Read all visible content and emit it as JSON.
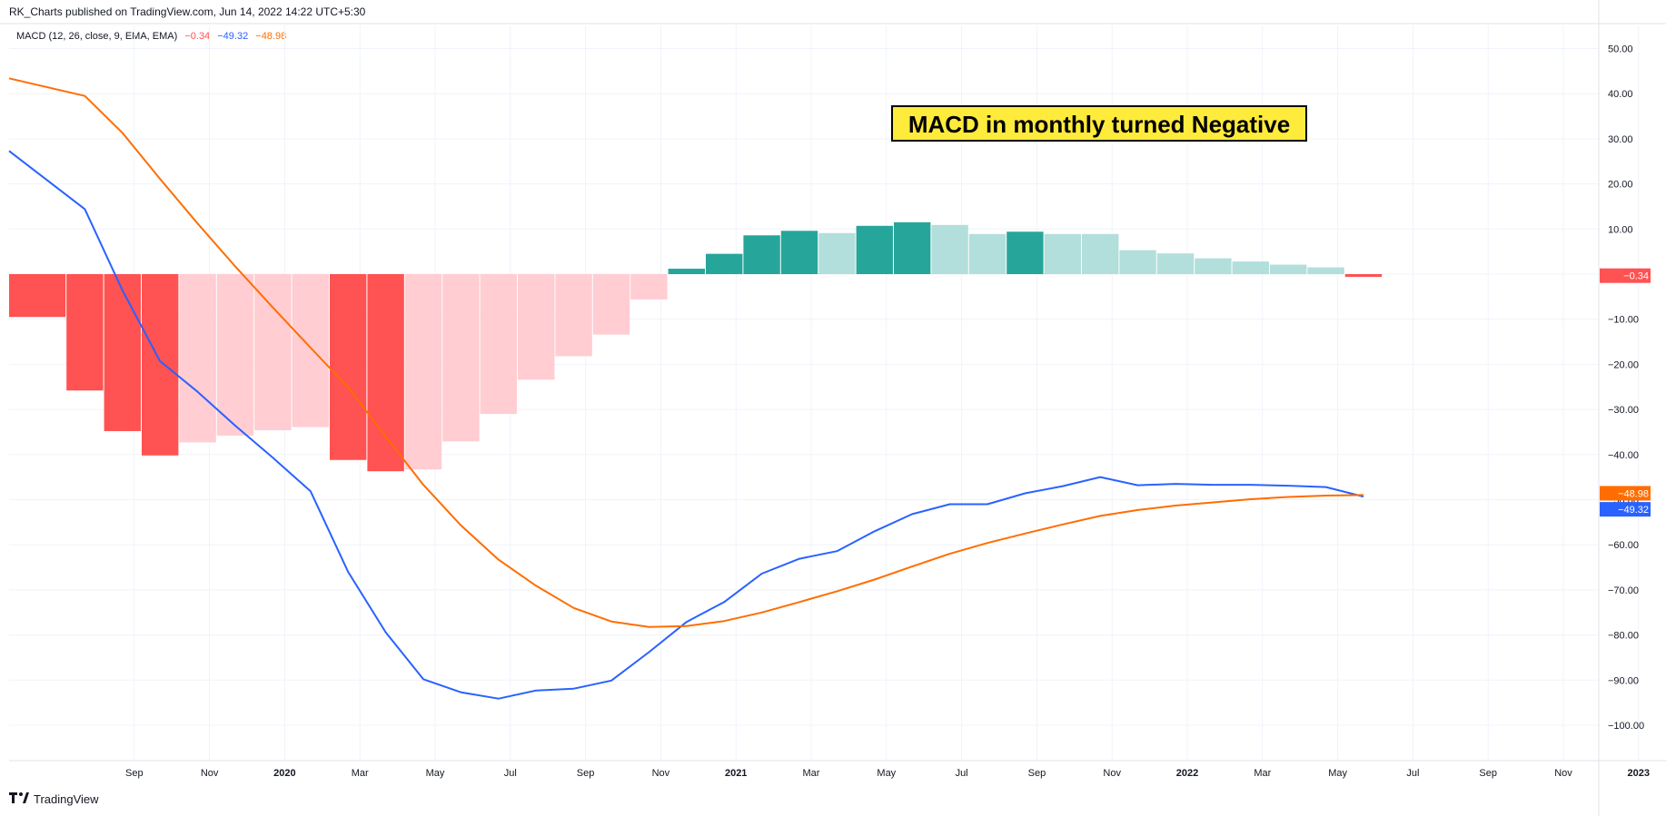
{
  "header": {
    "publisher": "RK_Charts published on TradingView.com, Jun 14, 2022 14:22 UTC+5:30"
  },
  "legend": {
    "indicator": "MACD (12, 26, close, 9, EMA, EMA)",
    "histogram_value": "−0.34",
    "macd_value": "−49.32",
    "signal_value": "−48.98"
  },
  "annotation": {
    "text": "MACD in monthly turned Negative"
  },
  "footer": {
    "brand": "TradingView",
    "logo": "tradingview-logo-icon"
  },
  "colors": {
    "macd_line": "#2962ff",
    "signal_line": "#ff6d00",
    "hist_pos_strong": "#26a69a",
    "hist_pos_weak": "#b2dfdb",
    "hist_neg_strong": "#ff5252",
    "hist_neg_weak": "#ffcdd2",
    "annotation_bg": "#ffeb3b"
  },
  "chart_data": {
    "type": "bar",
    "title": "",
    "y_ticks": [
      "50.00",
      "40.00",
      "30.00",
      "20.00",
      "10.00",
      "0.00",
      "−10.00",
      "−20.00",
      "−30.00",
      "−40.00",
      "−50.00",
      "−60.00",
      "−70.00",
      "−80.00",
      "−90.00",
      "−100.00"
    ],
    "ylim": [
      -107,
      52
    ],
    "x_ticks": [
      "Sep",
      "Nov",
      "2020",
      "Mar",
      "May",
      "Jul",
      "Sep",
      "Nov",
      "2021",
      "Mar",
      "May",
      "Jul",
      "Sep",
      "Nov",
      "2022",
      "Mar",
      "May",
      "Jul",
      "Sep",
      "Nov",
      "2023"
    ],
    "x_tick_months": [
      "2019-09",
      "2019-11",
      "2020-01",
      "2020-03",
      "2020-05",
      "2020-07",
      "2020-09",
      "2020-11",
      "2021-01",
      "2021-03",
      "2021-05",
      "2021-07",
      "2021-09",
      "2021-11",
      "2022-01",
      "2022-03",
      "2022-05",
      "2022-07",
      "2022-09",
      "2022-11",
      "2023-01"
    ],
    "x_tick_bold": [
      false,
      false,
      true,
      false,
      false,
      false,
      false,
      false,
      true,
      false,
      false,
      false,
      false,
      false,
      true,
      false,
      false,
      false,
      false,
      false,
      true
    ],
    "histogram": {
      "months": [
        "2019-07",
        "2019-08",
        "2019-09",
        "2019-10",
        "2019-11",
        "2019-12",
        "2020-01",
        "2020-02",
        "2020-03",
        "2020-04",
        "2020-05",
        "2020-06",
        "2020-07",
        "2020-08",
        "2020-09",
        "2020-10",
        "2020-11",
        "2020-12",
        "2021-01",
        "2021-02",
        "2021-03",
        "2021-04",
        "2021-05",
        "2021-06",
        "2021-07",
        "2021-08",
        "2021-09",
        "2021-10",
        "2021-11",
        "2021-12",
        "2022-01",
        "2022-02",
        "2022-03",
        "2022-04",
        "2022-05",
        "2022-06"
      ],
      "values": [
        -9.5,
        -25.8,
        -34.8,
        -40.2,
        -37.3,
        -35.8,
        -34.6,
        -33.9,
        -41.2,
        -43.7,
        -43.3,
        -37.1,
        -31.0,
        -23.4,
        -18.2,
        -13.4,
        -5.6,
        1.2,
        4.5,
        8.6,
        9.6,
        9.1,
        10.7,
        11.5,
        10.9,
        8.9,
        9.4,
        8.9,
        8.9,
        5.3,
        4.6,
        3.5,
        2.8,
        2.1,
        1.5,
        -0.34
      ],
      "colors": [
        "hist_neg_strong",
        "hist_neg_strong",
        "hist_neg_strong",
        "hist_neg_strong",
        "hist_neg_weak",
        "hist_neg_weak",
        "hist_neg_weak",
        "hist_neg_weak",
        "hist_neg_strong",
        "hist_neg_strong",
        "hist_neg_weak",
        "hist_neg_weak",
        "hist_neg_weak",
        "hist_neg_weak",
        "hist_neg_weak",
        "hist_neg_weak",
        "hist_neg_weak",
        "hist_pos_strong",
        "hist_pos_strong",
        "hist_pos_strong",
        "hist_pos_strong",
        "hist_pos_weak",
        "hist_pos_strong",
        "hist_pos_strong",
        "hist_pos_weak",
        "hist_pos_weak",
        "hist_pos_strong",
        "hist_pos_weak",
        "hist_pos_weak",
        "hist_pos_weak",
        "hist_pos_weak",
        "hist_pos_weak",
        "hist_pos_weak",
        "hist_pos_weak",
        "hist_pos_weak",
        "hist_neg_strong"
      ]
    },
    "series": [
      {
        "name": "MACD",
        "months": [
          "2019-07",
          "2019-08",
          "2019-09",
          "2019-10",
          "2019-11",
          "2019-12",
          "2020-01",
          "2020-02",
          "2020-03",
          "2020-04",
          "2020-05",
          "2020-06",
          "2020-07",
          "2020-08",
          "2020-09",
          "2020-10",
          "2020-11",
          "2020-12",
          "2021-01",
          "2021-02",
          "2021-03",
          "2021-04",
          "2021-05",
          "2021-06",
          "2021-07",
          "2021-08",
          "2021-09",
          "2021-10",
          "2021-11",
          "2021-12",
          "2022-01",
          "2022-02",
          "2022-03",
          "2022-04",
          "2022-05",
          "2022-06"
        ],
        "values": [
          27.3,
          14.4,
          -3.6,
          -19.3,
          -26.1,
          -33.6,
          -40.7,
          -48.1,
          -66.0,
          -79.4,
          -89.8,
          -92.7,
          -94.1,
          -92.3,
          -91.9,
          -90.1,
          -83.8,
          -77.1,
          -72.7,
          -66.4,
          -63.1,
          -61.4,
          -57.0,
          -53.2,
          -51.0,
          -51.0,
          -48.6,
          -47.0,
          -45.0,
          -46.8,
          -46.5,
          -46.7,
          -46.7,
          -46.9,
          -47.2,
          -49.32
        ]
      },
      {
        "name": "Signal",
        "months": [
          "2019-07",
          "2019-08",
          "2019-09",
          "2019-10",
          "2019-11",
          "2019-12",
          "2020-01",
          "2020-02",
          "2020-03",
          "2020-04",
          "2020-05",
          "2020-06",
          "2020-07",
          "2020-08",
          "2020-09",
          "2020-10",
          "2020-11",
          "2020-12",
          "2021-01",
          "2021-02",
          "2021-03",
          "2021-04",
          "2021-05",
          "2021-06",
          "2021-07",
          "2021-08",
          "2021-09",
          "2021-10",
          "2021-11",
          "2021-12",
          "2022-01",
          "2022-02",
          "2022-03",
          "2022-04",
          "2022-05",
          "2022-06"
        ],
        "values": [
          43.4,
          39.5,
          31.3,
          21.1,
          11.2,
          1.7,
          -7.4,
          -16.3,
          -25.1,
          -36.0,
          -46.7,
          -55.7,
          -63.3,
          -69.1,
          -74.0,
          -77.0,
          -78.2,
          -78.0,
          -76.9,
          -75.0,
          -72.7,
          -70.3,
          -67.7,
          -64.8,
          -62.0,
          -59.6,
          -57.5,
          -55.5,
          -53.6,
          -52.3,
          -51.3,
          -50.6,
          -49.9,
          -49.4,
          -49.1,
          -48.98
        ]
      }
    ],
    "last_value_labels": {
      "histogram": "−0.34",
      "signal": "−48.98",
      "macd": "−49.32"
    }
  }
}
